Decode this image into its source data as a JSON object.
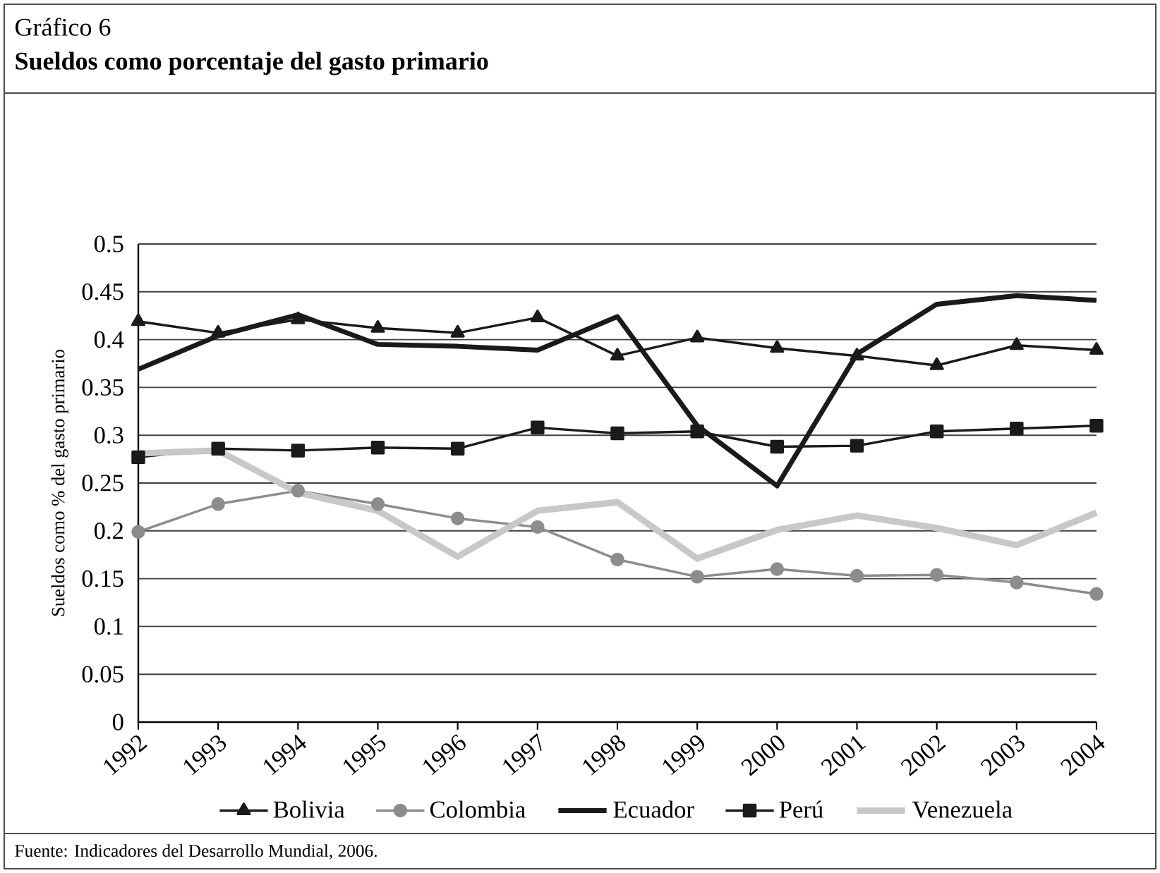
{
  "chart_data": {
    "type": "line",
    "title": "Gráfico 6",
    "subtitle": "Sueldos como porcentaje del gasto primario",
    "ylabel": "Sueldos como % del gasto primario",
    "categories": [
      "1992",
      "1993",
      "1994",
      "1995",
      "1996",
      "1997",
      "1998",
      "1999",
      "2000",
      "2001",
      "2002",
      "2003",
      "2004"
    ],
    "series": [
      {
        "name": "Bolivia",
        "color": "#1a1a1a",
        "marker": "triangle",
        "values": [
          0.419,
          0.407,
          0.421,
          0.412,
          0.407,
          0.423,
          0.383,
          0.402,
          0.391,
          0.383,
          0.373,
          0.394,
          0.389
        ]
      },
      {
        "name": "Colombia",
        "color": "#8c8c8c",
        "marker": "circle",
        "values": [
          0.199,
          0.228,
          0.242,
          0.228,
          0.213,
          0.204,
          0.17,
          0.152,
          0.16,
          0.153,
          0.154,
          0.146,
          0.134
        ]
      },
      {
        "name": "Ecuador",
        "color": "#1a1a1a",
        "marker": "none",
        "values": [
          0.369,
          0.404,
          0.426,
          0.395,
          0.393,
          0.389,
          0.424,
          0.31,
          0.247,
          0.385,
          0.437,
          0.446,
          0.441
        ]
      },
      {
        "name": "Perú",
        "color": "#1a1a1a",
        "marker": "square",
        "values": [
          0.277,
          0.286,
          0.284,
          0.287,
          0.286,
          0.308,
          0.302,
          0.304,
          0.288,
          0.289,
          0.304,
          0.307,
          0.31
        ]
      },
      {
        "name": "Venezuela",
        "color": "#c8c8c8",
        "marker": "none",
        "values": [
          0.281,
          0.284,
          0.24,
          0.221,
          0.173,
          0.221,
          0.23,
          0.171,
          0.201,
          0.216,
          0.203,
          0.185,
          0.219
        ]
      }
    ],
    "ylim": [
      0,
      0.5
    ],
    "yticks": [
      0,
      0.05,
      0.1,
      0.15,
      0.2,
      0.25,
      0.3,
      0.35,
      0.4,
      0.45,
      0.5
    ],
    "grid": "y",
    "legend": "bottom",
    "annotations": [
      "Fuente: Indicadores del Desarrollo Mundial, 2006."
    ]
  }
}
